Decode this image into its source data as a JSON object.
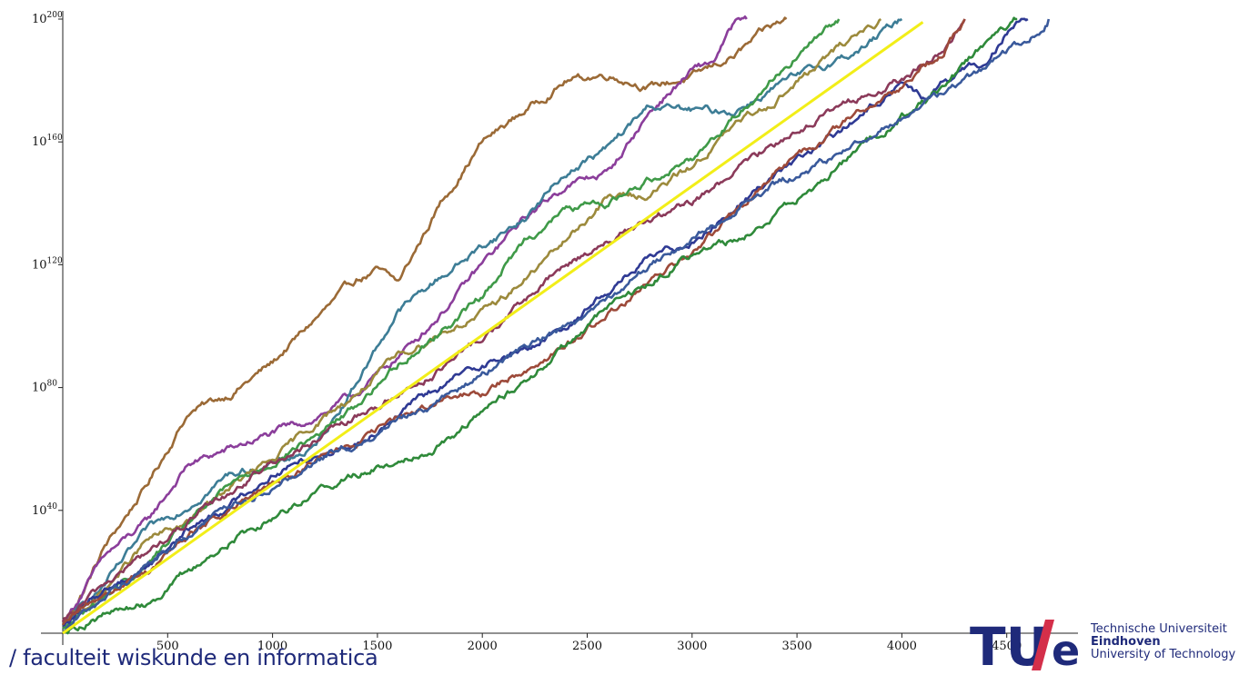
{
  "chart_data": {
    "type": "line",
    "title": "",
    "xlabel": "",
    "ylabel": "",
    "y_scale": "log10",
    "xlim": [
      -100,
      4900
    ],
    "ylim_log10": [
      0,
      202
    ],
    "x_ticks": [
      500,
      1000,
      1500,
      2000,
      2500,
      3000,
      3500,
      4000,
      4500
    ],
    "x_tick_labels": [
      "500",
      "1000",
      "1500",
      "2000",
      "2500",
      "3000",
      "3500",
      "4000",
      "4500"
    ],
    "y_ticks_log10": [
      40,
      80,
      120,
      160,
      200
    ],
    "y_tick_labels": [
      {
        "base": "10",
        "exp": "40"
      },
      {
        "base": "10",
        "exp": "80"
      },
      {
        "base": "10",
        "exp": "120"
      },
      {
        "base": "10",
        "exp": "160"
      },
      {
        "base": "10",
        "exp": "200"
      }
    ],
    "grid": false,
    "legend": "none",
    "trend_line": {
      "color": "#f2ee18",
      "x": [
        0,
        4100
      ],
      "log10_y": [
        0,
        199
      ]
    },
    "series": [
      {
        "color": "#9b6a36",
        "x": [
          0,
          100,
          200,
          400,
          600,
          800,
          1000,
          1200,
          1400,
          1500,
          1600,
          1800,
          2000,
          2200,
          2400,
          2600,
          2800,
          3000,
          3200,
          3350,
          3450
        ],
        "log10_y": [
          2,
          14,
          28,
          48,
          72,
          78,
          88,
          102,
          115,
          118,
          114,
          140,
          160,
          170,
          180,
          182,
          178,
          181,
          188,
          196,
          200
        ]
      },
      {
        "color": "#8b3e9b",
        "x": [
          0,
          200,
          400,
          600,
          800,
          1000,
          1200,
          1400,
          1600,
          1800,
          2000,
          2200,
          2400,
          2600,
          2800,
          3000,
          3100,
          3200,
          3260
        ],
        "log10_y": [
          3,
          25,
          36,
          55,
          60,
          65,
          70,
          78,
          90,
          104,
          120,
          135,
          146,
          150,
          170,
          183,
          186,
          198,
          200
        ]
      },
      {
        "color": "#3d7d96",
        "x": [
          0,
          200,
          400,
          600,
          800,
          1000,
          1200,
          1400,
          1600,
          1800,
          2000,
          2200,
          2400,
          2600,
          2800,
          3000,
          3200,
          3400,
          3600,
          3800,
          4000
        ],
        "log10_y": [
          2,
          16,
          33,
          42,
          52,
          55,
          60,
          82,
          105,
          116,
          126,
          135,
          150,
          158,
          172,
          170,
          170,
          178,
          184,
          190,
          200
        ]
      },
      {
        "color": "#9c8a3c",
        "x": [
          0,
          200,
          400,
          600,
          800,
          1000,
          1200,
          1400,
          1600,
          1800,
          2000,
          2200,
          2400,
          2600,
          2800,
          3000,
          3200,
          3400,
          3600,
          3800,
          3900
        ],
        "log10_y": [
          2,
          14,
          30,
          36,
          48,
          56,
          68,
          78,
          90,
          98,
          104,
          115,
          128,
          142,
          143,
          152,
          165,
          174,
          185,
          196,
          200
        ]
      },
      {
        "color": "#3f9a48",
        "x": [
          0,
          200,
          400,
          600,
          800,
          1000,
          1200,
          1400,
          1600,
          1800,
          2000,
          2200,
          2400,
          2600,
          2800,
          3000,
          3200,
          3400,
          3600,
          3700
        ],
        "log10_y": [
          1,
          12,
          22,
          36,
          48,
          56,
          64,
          74,
          88,
          98,
          110,
          128,
          138,
          140,
          148,
          155,
          168,
          182,
          194,
          200
        ]
      },
      {
        "color": "#2f3a94",
        "x": [
          0,
          200,
          400,
          600,
          800,
          1000,
          1200,
          1400,
          1600,
          1800,
          2000,
          2200,
          2400,
          2600,
          2800,
          3000,
          3200,
          3400,
          3600,
          3800,
          4000,
          4100,
          4200,
          4400,
          4500,
          4600
        ],
        "log10_y": [
          2,
          14,
          22,
          34,
          42,
          52,
          58,
          62,
          72,
          80,
          88,
          92,
          100,
          112,
          122,
          128,
          138,
          150,
          158,
          168,
          180,
          174,
          180,
          186,
          196,
          200
        ]
      },
      {
        "color": "#8b3a5a",
        "x": [
          0,
          200,
          400,
          600,
          800,
          1000,
          1200,
          1400,
          1600,
          1800,
          2000,
          2200,
          2400,
          2600,
          2800,
          3000,
          3200,
          3400,
          3600,
          3800,
          4000,
          4200,
          4300
        ],
        "log10_y": [
          3,
          16,
          26,
          36,
          46,
          56,
          62,
          70,
          78,
          86,
          96,
          108,
          120,
          128,
          134,
          140,
          150,
          160,
          168,
          174,
          180,
          190,
          200
        ]
      },
      {
        "color": "#9d4a3a",
        "x": [
          0,
          200,
          400,
          600,
          800,
          1000,
          1200,
          1400,
          1600,
          1800,
          2000,
          2200,
          2400,
          2600,
          2800,
          3000,
          3200,
          3400,
          3600,
          3800,
          4000,
          4200,
          4300
        ],
        "log10_y": [
          2,
          13,
          20,
          32,
          40,
          48,
          56,
          62,
          70,
          76,
          78,
          86,
          94,
          104,
          114,
          124,
          136,
          150,
          160,
          170,
          178,
          190,
          200
        ]
      },
      {
        "color": "#2f8a3a",
        "x": [
          0,
          200,
          400,
          600,
          800,
          1000,
          1200,
          1400,
          1600,
          1800,
          2000,
          2200,
          2400,
          2600,
          2800,
          3000,
          3200,
          3400,
          3600,
          3800,
          4000,
          4200,
          4400,
          4550
        ],
        "log10_y": [
          1,
          6,
          10,
          20,
          30,
          38,
          46,
          52,
          56,
          62,
          72,
          82,
          94,
          106,
          114,
          124,
          128,
          136,
          146,
          158,
          168,
          178,
          192,
          200
        ]
      },
      {
        "color": "#3a5a9c",
        "x": [
          0,
          200,
          400,
          600,
          800,
          1000,
          1200,
          1400,
          1600,
          1800,
          2000,
          2200,
          2400,
          2600,
          2800,
          3000,
          3200,
          3400,
          3600,
          3800,
          4000,
          4200,
          4400,
          4600,
          4700
        ],
        "log10_y": [
          1,
          12,
          22,
          32,
          42,
          48,
          56,
          62,
          70,
          76,
          84,
          94,
          100,
          110,
          120,
          128,
          138,
          146,
          152,
          160,
          168,
          176,
          184,
          194,
          200
        ]
      }
    ]
  },
  "footer": {
    "department": "/ faculteit wiskunde en informatica"
  },
  "logo": {
    "mark_tu": "TU",
    "mark_e": "e",
    "line1": "Technische Universiteit",
    "line2": "Eindhoven",
    "line3": "University of Technology"
  },
  "colors": {
    "tue_blue": "#1f2a7a",
    "tue_red": "#d42f4a"
  }
}
